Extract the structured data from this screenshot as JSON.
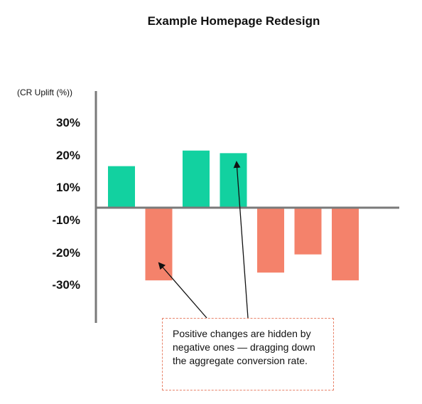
{
  "chart_data": {
    "type": "bar",
    "title": "Example Homepage Redesign",
    "ylabel": "(CR Uplift (%))",
    "xlabel": "",
    "categories": [
      "",
      "",
      "",
      "",
      "",
      "",
      ""
    ],
    "values": [
      16,
      -28,
      22,
      21,
      -25,
      -18,
      -28
    ],
    "y_tick_labels": [
      "30%",
      "20%",
      "10%",
      "-10%",
      "-20%",
      "-30%"
    ],
    "grid": false,
    "legend": "none",
    "annotation": {
      "text": "Positive changes are hidden by negative ones — dragging down the aggregate conversion rate.",
      "arrow_targets": [
        1,
        3
      ]
    }
  },
  "colors": {
    "positive": "#12d1a0",
    "negative": "#f4826b",
    "axis": "#7a7a7a",
    "annotation_border": "#e8836a",
    "arrow": "#111111"
  }
}
